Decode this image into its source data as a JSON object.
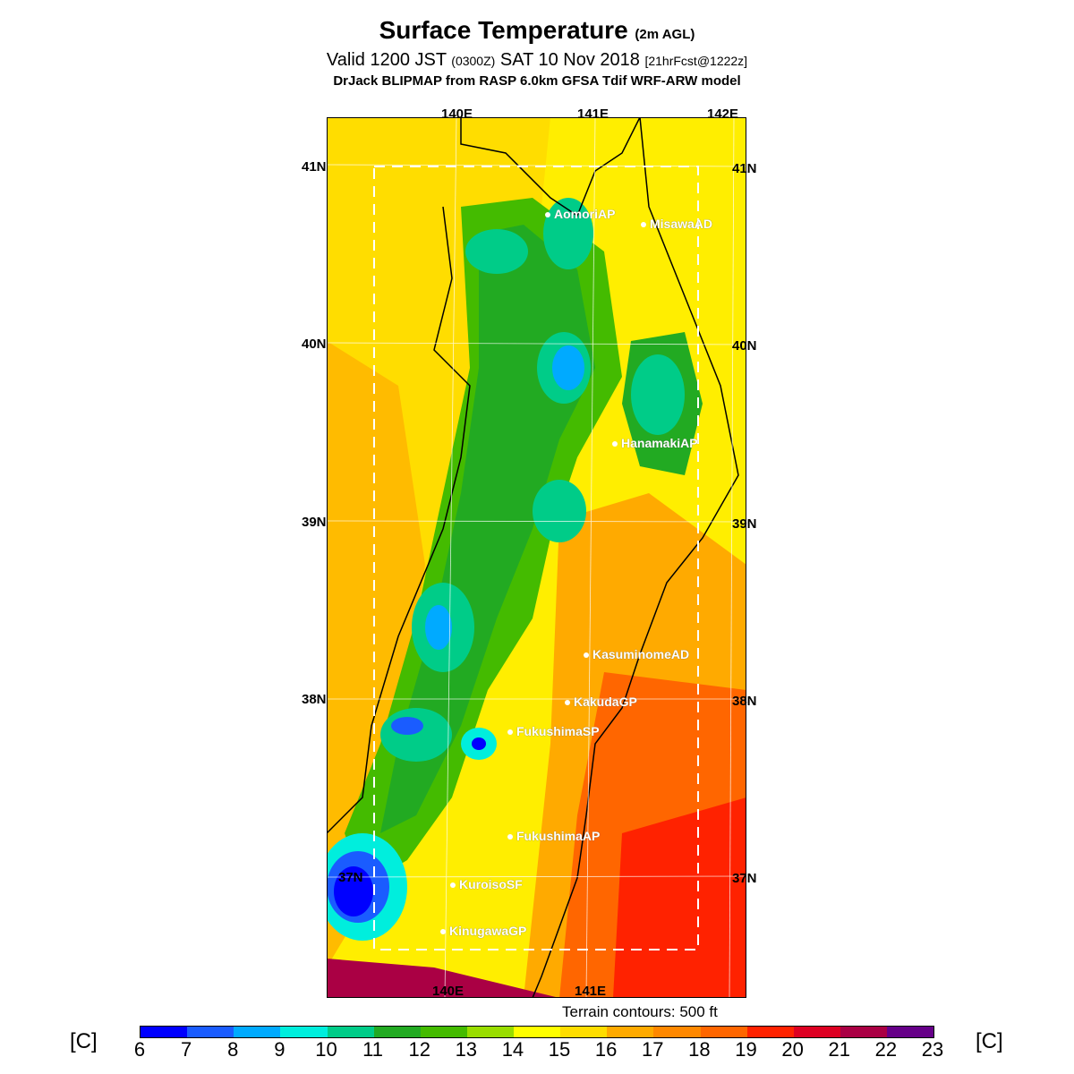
{
  "title": {
    "main": "Surface Temperature",
    "main_suffix": "(2m AGL)",
    "valid_prefix": "Valid 1200 JST",
    "valid_z": "(0300Z)",
    "valid_date": "SAT 10 Nov 2018",
    "forecast": "[21hrFcst@1222z]",
    "model": "DrJack BLIPMAP from RASP 6.0km GFSA Tdif WRF-ARW model"
  },
  "map": {
    "lon_labels_top": [
      "140E",
      "141E",
      "142E"
    ],
    "lon_labels_bottom": [
      "140E",
      "141E"
    ],
    "lat_labels_left": [
      "41N",
      "40N",
      "39N",
      "38N",
      "37N"
    ],
    "lat_labels_right": [
      "41N",
      "40N",
      "39N",
      "38N",
      "37N"
    ],
    "stations": [
      {
        "name": "AomoriAP"
      },
      {
        "name": "MisawaAD"
      },
      {
        "name": "HanamakiAP"
      },
      {
        "name": "KasuminomeAD"
      },
      {
        "name": "KakudaGP"
      },
      {
        "name": "FukushimaSP"
      },
      {
        "name": "FukushimaAP"
      },
      {
        "name": "KuroisoSF"
      },
      {
        "name": "KinugawaGP"
      }
    ]
  },
  "terrain_note": "Terrain contours: 500 ft",
  "legend": {
    "unit": "[C]",
    "ticks": [
      "6",
      "7",
      "8",
      "9",
      "10",
      "11",
      "12",
      "13",
      "14",
      "15",
      "16",
      "17",
      "18",
      "19",
      "20",
      "21",
      "22",
      "23"
    ],
    "colors": [
      "#0000ff",
      "#1a5cff",
      "#00aaff",
      "#00eedd",
      "#00cc88",
      "#22aa22",
      "#44bb00",
      "#99dd00",
      "#ffff00",
      "#ffdd00",
      "#ffaa00",
      "#ff8800",
      "#ff6600",
      "#ff2200",
      "#dd0022",
      "#aa0044",
      "#660088"
    ]
  }
}
